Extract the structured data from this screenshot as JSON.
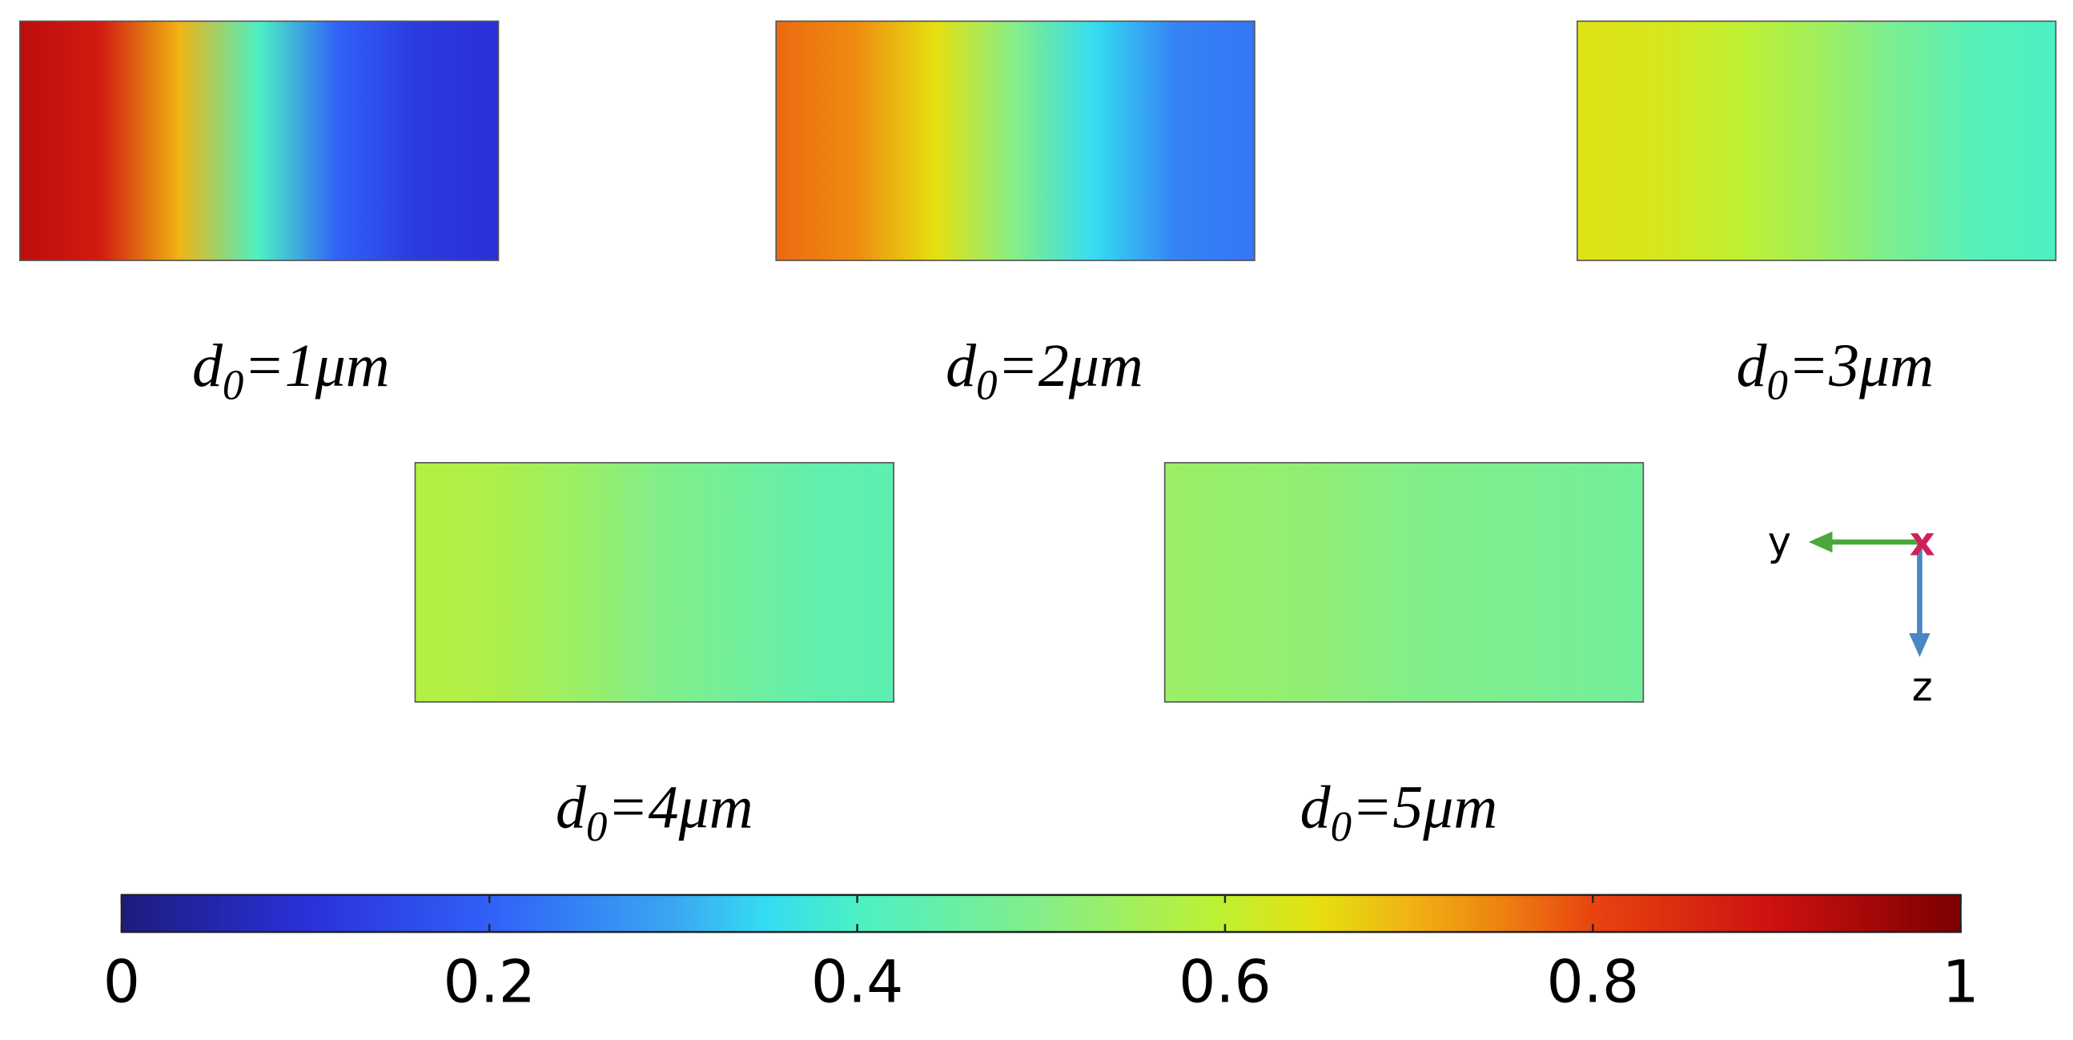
{
  "chart_data": {
    "type": "field-panels",
    "colormap": [
      {
        "value": 0,
        "color": "#1c1c7e"
      },
      {
        "value": 0.1,
        "color": "#2a30d8"
      },
      {
        "value": 0.2,
        "color": "#3160f8"
      },
      {
        "value": 0.3,
        "color": "#3aa6f2"
      },
      {
        "value": 0.35,
        "color": "#34dcf2"
      },
      {
        "value": 0.4,
        "color": "#4cf0c4"
      },
      {
        "value": 0.5,
        "color": "#84ee88"
      },
      {
        "value": 0.6,
        "color": "#c0f030"
      },
      {
        "value": 0.65,
        "color": "#e6e010"
      },
      {
        "value": 0.7,
        "color": "#f0b414"
      },
      {
        "value": 0.75,
        "color": "#ee8210"
      },
      {
        "value": 0.8,
        "color": "#e84410"
      },
      {
        "value": 0.9,
        "color": "#cc1010"
      },
      {
        "value": 1,
        "color": "#7c0000"
      }
    ],
    "panels": [
      {
        "label": {
          "base": "d",
          "sub": "0",
          "rest": "=1μm"
        },
        "values": [
          0.92,
          0.88,
          0.7,
          0.4,
          0.2,
          0.12,
          0.1
        ]
      },
      {
        "label": {
          "base": "d",
          "sub": "0",
          "rest": "=2μm"
        },
        "values": [
          0.77,
          0.74,
          0.65,
          0.5,
          0.35,
          0.25,
          0.23
        ]
      },
      {
        "label": {
          "base": "d",
          "sub": "0",
          "rest": "=3μm"
        },
        "values": [
          0.64,
          0.63,
          0.6,
          0.55,
          0.48,
          0.42,
          0.4
        ]
      },
      {
        "label": {
          "base": "d",
          "sub": "0",
          "rest": "=4μm"
        },
        "values": [
          0.58,
          0.57,
          0.54,
          0.5,
          0.47,
          0.44,
          0.43
        ]
      },
      {
        "label": {
          "base": "d",
          "sub": "0",
          "rest": "=5μm"
        },
        "values": [
          0.54,
          0.53,
          0.52,
          0.5,
          0.49,
          0.48,
          0.47
        ]
      }
    ],
    "colorbar": {
      "lim": [
        0,
        1
      ],
      "ticks": [
        0,
        0.2,
        0.4,
        0.6,
        0.8,
        1
      ]
    },
    "axes_icon": {
      "y": "y",
      "x": "x",
      "z": "z"
    }
  }
}
